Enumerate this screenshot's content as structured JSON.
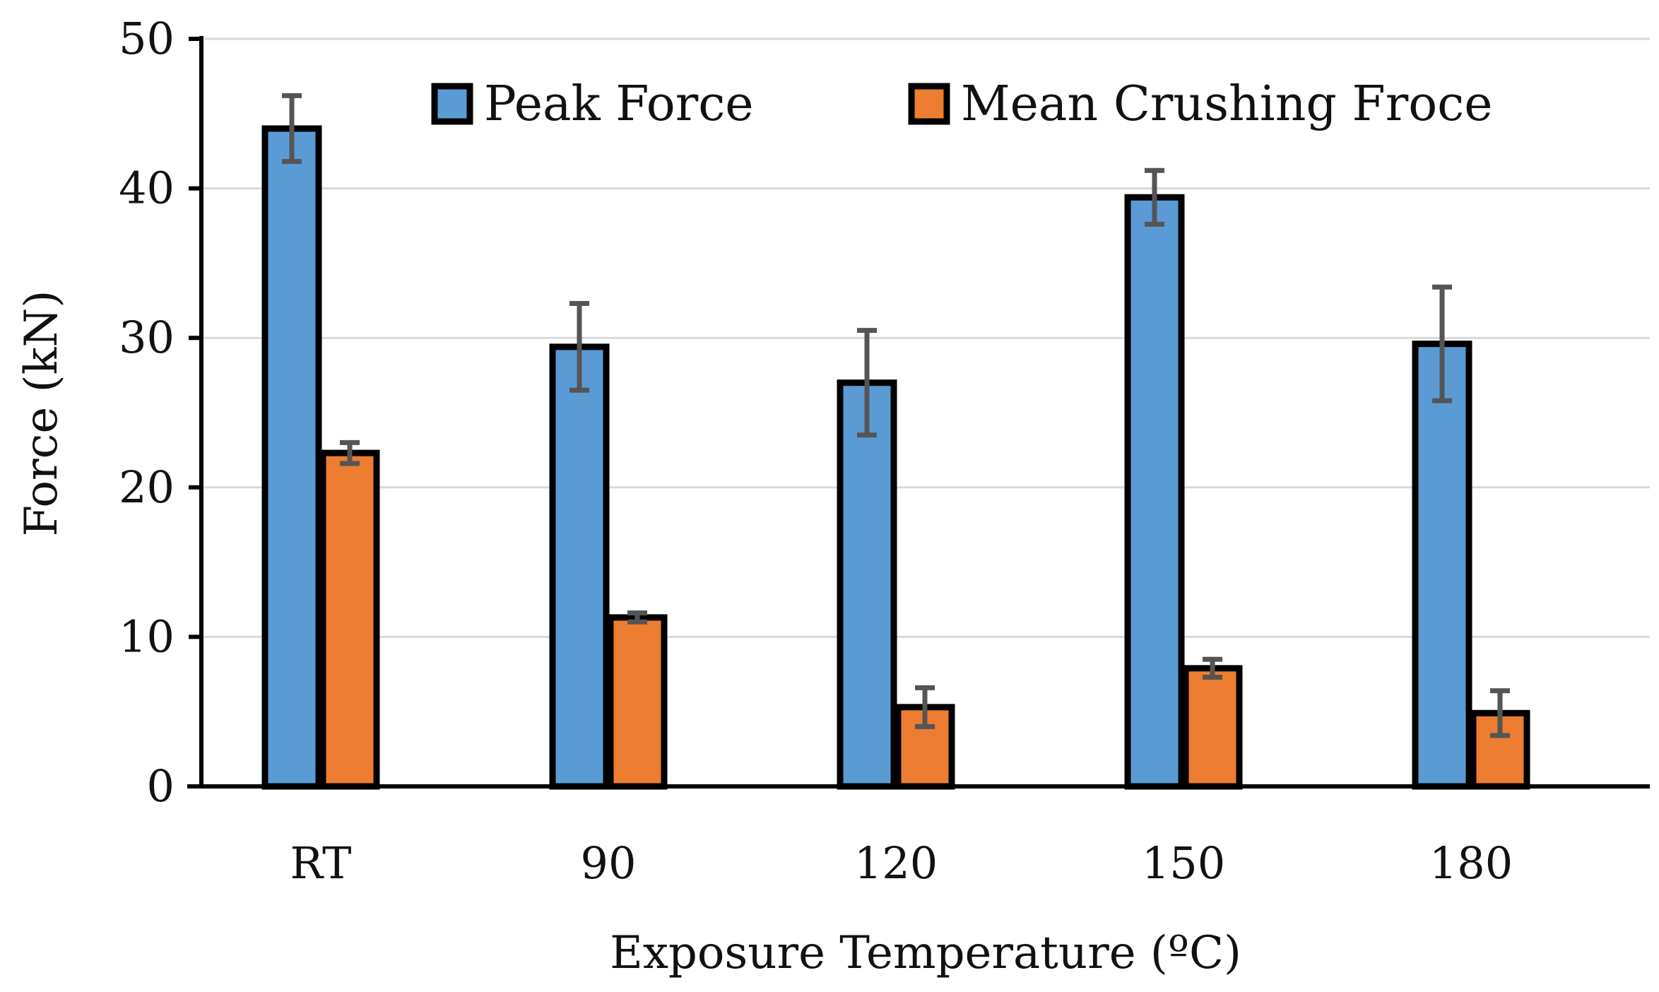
{
  "chart_data": {
    "type": "bar",
    "categories": [
      "RT",
      "90",
      "120",
      "150",
      "180"
    ],
    "series": [
      {
        "name": "Peak Force",
        "values": [
          44.0,
          29.4,
          27.0,
          39.4,
          29.6
        ],
        "errors": [
          2.2,
          2.9,
          3.5,
          1.8,
          3.8
        ],
        "color": "#5b9bd5"
      },
      {
        "name": "Mean Crushing Froce",
        "values": [
          22.3,
          11.3,
          5.3,
          7.9,
          4.9
        ],
        "errors": [
          0.7,
          0.3,
          1.3,
          0.6,
          1.5
        ],
        "color": "#ed7d31"
      }
    ],
    "xlabel": "Exposure Temperature (ºC)",
    "ylabel": "Force (kN)",
    "ylim": [
      0,
      50
    ],
    "yticks": [
      "0",
      "10",
      "20",
      "30",
      "40",
      "50"
    ],
    "grid": true,
    "legend_position": "top"
  }
}
